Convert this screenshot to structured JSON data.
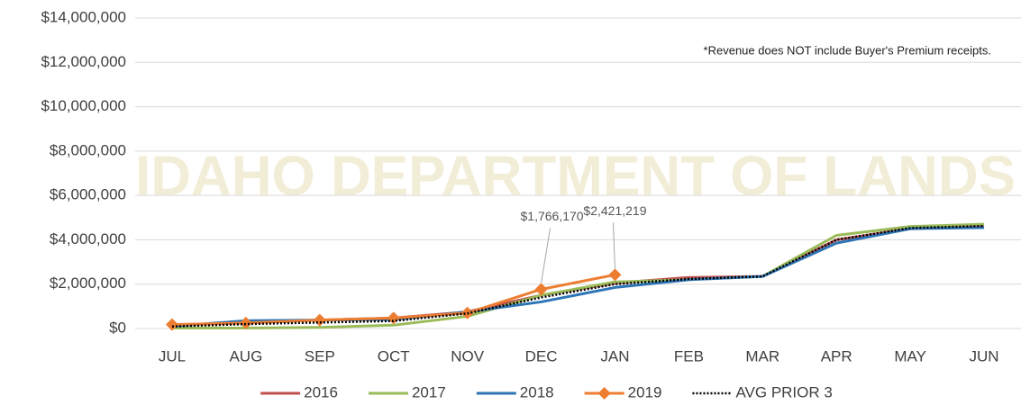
{
  "chart_data": {
    "type": "line",
    "watermark": "IDAHO DEPARTMENT OF LANDS",
    "annotation": "*Revenue does NOT include Buyer's Premium receipts.",
    "categories": [
      "JUL",
      "AUG",
      "SEP",
      "OCT",
      "NOV",
      "DEC",
      "JAN",
      "FEB",
      "MAR",
      "APR",
      "MAY",
      "JUN"
    ],
    "ylim": [
      0,
      14000000
    ],
    "yticks": [
      {
        "value": 0,
        "label": "$0"
      },
      {
        "value": 2000000,
        "label": "$2,000,000"
      },
      {
        "value": 4000000,
        "label": "$4,000,000"
      },
      {
        "value": 6000000,
        "label": "$6,000,000"
      },
      {
        "value": 8000000,
        "label": "$8,000,000"
      },
      {
        "value": 10000000,
        "label": "$10,000,000"
      },
      {
        "value": 12000000,
        "label": "$12,000,000"
      },
      {
        "value": 14000000,
        "label": "$14,000,000"
      }
    ],
    "grid": true,
    "legend": "bottom",
    "series": [
      {
        "name": "2016",
        "color": "#c0504d",
        "style": "solid",
        "values": [
          150000,
          250000,
          380000,
          470000,
          750000,
          1500000,
          2050000,
          2300000,
          2350000,
          4000000,
          4500000,
          4600000
        ]
      },
      {
        "name": "2017",
        "color": "#9bbb59",
        "style": "solid",
        "values": [
          20000,
          20000,
          50000,
          150000,
          550000,
          1500000,
          2100000,
          2200000,
          2350000,
          4200000,
          4600000,
          4700000
        ]
      },
      {
        "name": "2018",
        "color": "#2e75b6",
        "style": "solid",
        "values": [
          100000,
          350000,
          380000,
          400000,
          750000,
          1200000,
          1850000,
          2200000,
          2350000,
          3850000,
          4500000,
          4550000
        ]
      },
      {
        "name": "2019",
        "color": "#ed7d31",
        "style": "solid",
        "marker": "diamond",
        "values": [
          180000,
          250000,
          380000,
          470000,
          700000,
          1766170,
          2421219,
          null,
          null,
          null,
          null,
          null
        ],
        "value_labels": [
          null,
          null,
          null,
          null,
          null,
          "$1,766,170",
          "$2,421,219",
          null,
          null,
          null,
          null,
          null
        ]
      },
      {
        "name": "AVG PRIOR 3",
        "color": "#000000",
        "style": "dotted",
        "values": [
          90000,
          200000,
          270000,
          340000,
          680000,
          1400000,
          2000000,
          2230000,
          2350000,
          4000000,
          4530000,
          4620000
        ]
      }
    ]
  }
}
